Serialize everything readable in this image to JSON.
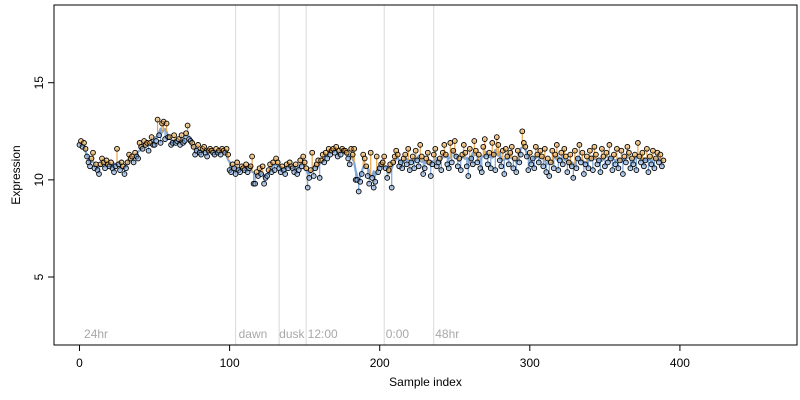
{
  "chart_data": {
    "type": "scatter",
    "title": "",
    "xlabel": "Sample index",
    "ylabel": "Expression",
    "xlim": [
      -17,
      478
    ],
    "ylim": [
      1.5,
      19
    ],
    "x_ticks": [
      "0",
      "100",
      "200",
      "300",
      "400"
    ],
    "y_ticks": [
      "5",
      "10",
      "15"
    ],
    "grid": false,
    "colors": {
      "points_edge": "#000000",
      "fit_line": "#7ea6d8",
      "residual_positive": "#e8a54a",
      "residual_negative": "#7ea6d8",
      "annotation": "#a8a8a8",
      "boundary_line": "#d9d9d9"
    },
    "boundaries": [
      104,
      133,
      151,
      203,
      236
    ],
    "annotations": [
      {
        "x": 3,
        "text": "24hr"
      },
      {
        "x": 106,
        "text": "dawn"
      },
      {
        "x": 133,
        "text": "dusk"
      },
      {
        "x": 152,
        "text": "12:00"
      },
      {
        "x": 204,
        "text": "0:00"
      },
      {
        "x": 237,
        "text": "48hr"
      }
    ],
    "series": [
      {
        "values": [
          11.8,
          12,
          11.7,
          11.9,
          11.6,
          11.2,
          10.9,
          10.7,
          11.1,
          11.4,
          10.6,
          10.8,
          10.5,
          10.3,
          10.8,
          11.1,
          10.9,
          10.6,
          11,
          10.8,
          10.7,
          10.9,
          10.6,
          10.4,
          10.7,
          11.6,
          10.8,
          10.5,
          10.9,
          10.7,
          10.3,
          10.6,
          10.9,
          11.3,
          11.1,
          11.2,
          10.9,
          11.4,
          11.2,
          11.1,
          11.9,
          11.7,
          11.6,
          12,
          11.8,
          11.9,
          11.5,
          11.9,
          12.2,
          11.8,
          11.8,
          12,
          13.1,
          12.3,
          11.9,
          12.9,
          13,
          12.1,
          12.9,
          12.2,
          12.2,
          11.8,
          11.9,
          12.3,
          11.9,
          12,
          12.1,
          11.8,
          12.3,
          11.9,
          12,
          12.4,
          12.8,
          12.1,
          12,
          11.9,
          11.7,
          11.3,
          11.5,
          11.8,
          11.4,
          11.3,
          11.6,
          11.7,
          11.4,
          11.2,
          11.5,
          11.6,
          11.5,
          11.4,
          11.3,
          11.6,
          11.4,
          11.5,
          11.3,
          11.6,
          11.5,
          11.4,
          11.6,
          11.3,
          10.5,
          10.4,
          10.8,
          10.6,
          10.3,
          10.9,
          10.5,
          10.4,
          10.7,
          10.6,
          10.5,
          10.8,
          10.4,
          10.6,
          10.7,
          11.2,
          9.8,
          9.8,
          10.4,
          10.2,
          10.6,
          10.3,
          10.7,
          9.8,
          10.1,
          10.2,
          10.5,
          10.8,
          10.4,
          10.9,
          10.5,
          11.1,
          10.9,
          10.6,
          10.4,
          10.7,
          10.5,
          10.3,
          10.8,
          10.6,
          10.9,
          10.7,
          10.6,
          10.4,
          10.8,
          10.3,
          10.5,
          11,
          10.7,
          11.2,
          10.9,
          10.6,
          9.6,
          10.1,
          10.5,
          11.4,
          10.2,
          10.6,
          10.8,
          11,
          10.1,
          11,
          11.3,
          10.9,
          11.4,
          11.1,
          11.6,
          11.3,
          11.5,
          11.6,
          11.4,
          11.7,
          11.2,
          11.5,
          11.3,
          11.6,
          11.5,
          11.5,
          11.4,
          11.1,
          10.8,
          11.6,
          11.3,
          11.6,
          10,
          10,
          9.4,
          9.9,
          10.3,
          11.3,
          11.1,
          10.7,
          10.2,
          9.8,
          11.4,
          10.1,
          9.6,
          9.9,
          11.2,
          10.4,
          10.6,
          10.8,
          10.9,
          11.2,
          10.6,
          10.1,
          10.5,
          10.8,
          9.6,
          10.9,
          11.2,
          11.5,
          11.3,
          10.7,
          10.9,
          10.6,
          11.1,
          11.3,
          10.8,
          11.6,
          10.5,
          10.9,
          11.2,
          10.6,
          11.5,
          11,
          10.7,
          11.8,
          11.2,
          10.3,
          10.6,
          11.1,
          11.4,
          10.9,
          10.2,
          10.8,
          11.3,
          11.6,
          10.7,
          10.9,
          11.1,
          10.5,
          11.4,
          11.8,
          11.3,
          10.8,
          10.6,
          11.9,
          10.9,
          11.5,
          12,
          11.2,
          10.7,
          11.1,
          10.5,
          11.3,
          11.8,
          11.4,
          10.7,
          10.2,
          11.6,
          11.1,
          10.8,
          12,
          11.5,
          10.9,
          11.3,
          10.6,
          10.4,
          11.7,
          12.1,
          11.2,
          10.8,
          11.4,
          10.6,
          11.9,
          11.3,
          10.5,
          12.2,
          11.8,
          11,
          10.7,
          11.5,
          10.3,
          11.6,
          11.2,
          10.8,
          11.4,
          11.7,
          10.6,
          11.1,
          10.4,
          11.5,
          10.9,
          11.3,
          12.5,
          11.9,
          11.7,
          11.2,
          10.5,
          11.4,
          10.8,
          11.1,
          10.6,
          11.7,
          11.3,
          10.9,
          11.5,
          11.2,
          10.7,
          11.6,
          10.4,
          11.1,
          10.2,
          10.9,
          11.5,
          10.6,
          11.3,
          11.8,
          10.5,
          11,
          11.4,
          10.8,
          11.6,
          11.2,
          10.4,
          10.9,
          11.3,
          10.7,
          10.1,
          11.5,
          10.6,
          11.1,
          11.8,
          10.9,
          11.4,
          10.3,
          10.8,
          11.2,
          10.6,
          11.5,
          11.1,
          10.5,
          11.7,
          11.3,
          10.8,
          11,
          10.4,
          11.6,
          11.2,
          10.7,
          11.4,
          10.9,
          11.8,
          11.1,
          10.5,
          11.3,
          10.8,
          11.6,
          10.6,
          11,
          11.5,
          10.3,
          11.2,
          10.9,
          11.7,
          11.4,
          10.6,
          11.1,
          10.8,
          11.3,
          10.5,
          11.9,
          11.2,
          10.9,
          11.4,
          10.7,
          11,
          11.6,
          10.4,
          11.2,
          10.8,
          11.5,
          10.6,
          11.1,
          11.4,
          10.9,
          11.3,
          10.7,
          11
        ]
      }
    ]
  }
}
